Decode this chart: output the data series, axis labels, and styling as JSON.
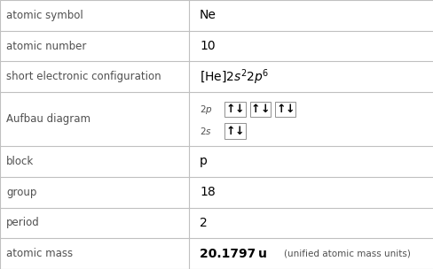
{
  "rows": [
    {
      "label": "atomic symbol",
      "value": "Ne",
      "type": "text"
    },
    {
      "label": "atomic number",
      "value": "10",
      "type": "text"
    },
    {
      "label": "short electronic configuration",
      "value": "",
      "type": "formula"
    },
    {
      "label": "Aufbau diagram",
      "value": "",
      "type": "aufbau"
    },
    {
      "label": "block",
      "value": "p",
      "type": "text"
    },
    {
      "label": "group",
      "value": "18",
      "type": "text"
    },
    {
      "label": "period",
      "value": "2",
      "type": "text"
    },
    {
      "label": "atomic mass",
      "value": "",
      "type": "mass"
    }
  ],
  "row_heights": [
    1.0,
    1.0,
    1.0,
    1.75,
    1.0,
    1.0,
    1.0,
    1.0
  ],
  "col_split": 0.435,
  "bg_color": "#ffffff",
  "grid_color": "#c0c0c0",
  "label_color": "#505050",
  "value_color": "#000000",
  "label_fontsize": 8.5,
  "value_fontsize": 10.0,
  "aufbau_label_fontsize": 7.5,
  "aufbau_arrow_fontsize": 9.0,
  "mass_main_fontsize": 10.0,
  "mass_sub_fontsize": 7.5
}
